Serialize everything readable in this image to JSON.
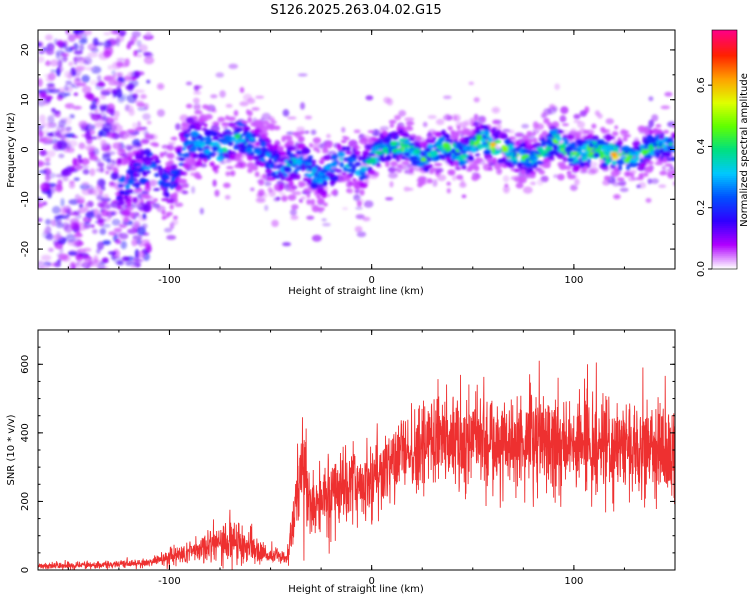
{
  "title": "S126.2025.263.04.02.G15",
  "chart_data": [
    {
      "type": "heatmap",
      "xlabel": "Height of straight line (km)",
      "ylabel": "Frequency (Hz)",
      "xlim": [
        -165,
        150
      ],
      "ylim": [
        -24,
        24
      ],
      "xticks": [
        -100,
        0,
        100
      ],
      "yticks": [
        -20,
        -10,
        0,
        10,
        20
      ],
      "colorbar": {
        "label": "Normalized spectral amplitude",
        "range": [
          0.0,
          0.78
        ],
        "ticks": [
          0.0,
          0.2,
          0.4,
          0.6
        ],
        "tick_labels": [
          "0.0",
          "0.2",
          "0.4",
          "0.6"
        ],
        "colors": [
          "#ffffff",
          "#b000ff",
          "#3000ff",
          "#0050ff",
          "#00c8ff",
          "#00e080",
          "#60ff00",
          "#e0ff00",
          "#ffa000",
          "#ff2000",
          "#ff0080"
        ]
      },
      "ridge": [
        {
          "x": -165,
          "f": -8,
          "spread": 16,
          "amp": 0.18
        },
        {
          "x": -140,
          "f": -7,
          "spread": 12,
          "amp": 0.22
        },
        {
          "x": -120,
          "f": -7,
          "spread": 6,
          "amp": 0.24
        },
        {
          "x": -110,
          "f": -3,
          "spread": 5,
          "amp": 0.25
        },
        {
          "x": -100,
          "f": -8,
          "spread": 5,
          "amp": 0.22
        },
        {
          "x": -90,
          "f": 2,
          "spread": 5,
          "amp": 0.28
        },
        {
          "x": -75,
          "f": 0,
          "spread": 4,
          "amp": 0.35
        },
        {
          "x": -65,
          "f": 3,
          "spread": 4,
          "amp": 0.34
        },
        {
          "x": -55,
          "f": 0,
          "spread": 4,
          "amp": 0.3
        },
        {
          "x": -45,
          "f": -4,
          "spread": 4,
          "amp": 0.3
        },
        {
          "x": -35,
          "f": -2,
          "spread": 4,
          "amp": 0.32
        },
        {
          "x": -25,
          "f": -6,
          "spread": 4,
          "amp": 0.3
        },
        {
          "x": -15,
          "f": -2,
          "spread": 4,
          "amp": 0.3
        },
        {
          "x": -5,
          "f": -4,
          "spread": 4,
          "amp": 0.32
        },
        {
          "x": 5,
          "f": 0,
          "spread": 3,
          "amp": 0.4
        },
        {
          "x": 15,
          "f": 1,
          "spread": 3,
          "amp": 0.42
        },
        {
          "x": 25,
          "f": -2,
          "spread": 3,
          "amp": 0.4
        },
        {
          "x": 35,
          "f": 1,
          "spread": 3,
          "amp": 0.42
        },
        {
          "x": 45,
          "f": -1,
          "spread": 3,
          "amp": 0.4
        },
        {
          "x": 55,
          "f": 2,
          "spread": 3,
          "amp": 0.45
        },
        {
          "x": 60,
          "f": 1,
          "spread": 3,
          "amp": 0.6
        },
        {
          "x": 70,
          "f": -1,
          "spread": 3,
          "amp": 0.4
        },
        {
          "x": 80,
          "f": -2,
          "spread": 3,
          "amp": 0.38
        },
        {
          "x": 90,
          "f": 2,
          "spread": 3,
          "amp": 0.45
        },
        {
          "x": 100,
          "f": -1,
          "spread": 3,
          "amp": 0.42
        },
        {
          "x": 110,
          "f": 0,
          "spread": 3,
          "amp": 0.45
        },
        {
          "x": 120,
          "f": -1,
          "spread": 3,
          "amp": 0.62
        },
        {
          "x": 130,
          "f": -2,
          "spread": 3,
          "amp": 0.4
        },
        {
          "x": 140,
          "f": 1,
          "spread": 3,
          "amp": 0.38
        },
        {
          "x": 150,
          "f": 0,
          "spread": 3,
          "amp": 0.35
        }
      ]
    },
    {
      "type": "line",
      "xlabel": "Height of straight line (km)",
      "ylabel": "SNR (10 * v/v)",
      "xlim": [
        -165,
        150
      ],
      "ylim": [
        0,
        700
      ],
      "xticks": [
        -100,
        0,
        100
      ],
      "yticks": [
        0,
        200,
        400,
        600
      ],
      "color": "#ee3030",
      "envelope": [
        {
          "x": -165,
          "mean": 12,
          "noise": 10
        },
        {
          "x": -130,
          "mean": 15,
          "noise": 12
        },
        {
          "x": -110,
          "mean": 22,
          "noise": 15
        },
        {
          "x": -95,
          "mean": 45,
          "noise": 35
        },
        {
          "x": -85,
          "mean": 60,
          "noise": 45
        },
        {
          "x": -70,
          "mean": 80,
          "noise": 70
        },
        {
          "x": -60,
          "mean": 70,
          "noise": 55
        },
        {
          "x": -50,
          "mean": 40,
          "noise": 25
        },
        {
          "x": -42,
          "mean": 35,
          "noise": 22
        },
        {
          "x": -37,
          "mean": 200,
          "noise": 150
        },
        {
          "x": -34,
          "mean": 280,
          "noise": 180
        },
        {
          "x": -30,
          "mean": 180,
          "noise": 100
        },
        {
          "x": -20,
          "mean": 220,
          "noise": 110
        },
        {
          "x": -10,
          "mean": 250,
          "noise": 120
        },
        {
          "x": 0,
          "mean": 270,
          "noise": 130
        },
        {
          "x": 10,
          "mean": 300,
          "noise": 140
        },
        {
          "x": 20,
          "mean": 340,
          "noise": 150
        },
        {
          "x": 30,
          "mean": 370,
          "noise": 150
        },
        {
          "x": 40,
          "mean": 380,
          "noise": 160
        },
        {
          "x": 50,
          "mean": 390,
          "noise": 170
        },
        {
          "x": 60,
          "mean": 380,
          "noise": 170
        },
        {
          "x": 70,
          "mean": 370,
          "noise": 160
        },
        {
          "x": 80,
          "mean": 380,
          "noise": 170
        },
        {
          "x": 90,
          "mean": 370,
          "noise": 160
        },
        {
          "x": 100,
          "mean": 375,
          "noise": 160
        },
        {
          "x": 110,
          "mean": 370,
          "noise": 160
        },
        {
          "x": 120,
          "mean": 365,
          "noise": 150
        },
        {
          "x": 130,
          "mean": 360,
          "noise": 150
        },
        {
          "x": 140,
          "mean": 355,
          "noise": 150
        },
        {
          "x": 150,
          "mean": 350,
          "noise": 150
        }
      ]
    }
  ]
}
